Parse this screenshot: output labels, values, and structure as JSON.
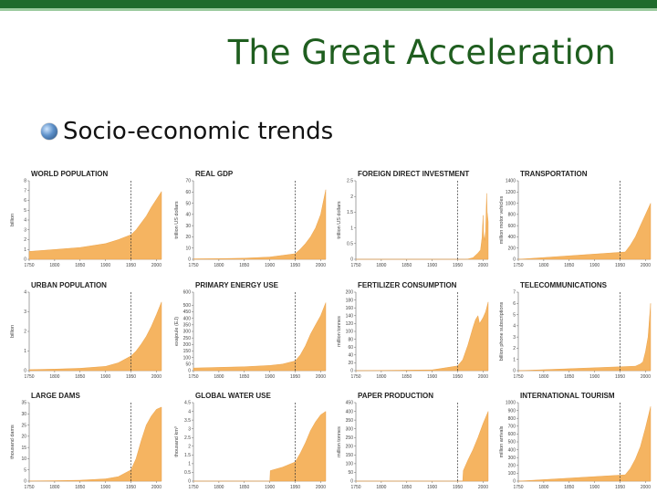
{
  "slide": {
    "title": "The Great Acceleration",
    "bullet": "Socio-economic trends"
  },
  "colors": {
    "area": "#f5b461",
    "bar_dark": "#1f6b2c",
    "bar_light": "#9ccb9f",
    "title": "#1f5e1f"
  },
  "chart_data": [
    {
      "type": "area",
      "title": "WORLD POPULATION",
      "ylabel": "billion",
      "ylim": [
        0,
        8
      ],
      "yticks": [
        "0",
        "1",
        "2",
        "3",
        "4",
        "5",
        "6",
        "7",
        "8"
      ],
      "xticks": [
        "1750",
        "1800",
        "1850",
        "1900",
        "1950",
        "2000"
      ],
      "marker": 1950,
      "x": [
        1750,
        1800,
        1850,
        1900,
        1925,
        1950,
        1960,
        1970,
        1980,
        1990,
        2000,
        2010
      ],
      "values": [
        0.8,
        1.0,
        1.2,
        1.6,
        2.0,
        2.5,
        3.0,
        3.7,
        4.4,
        5.3,
        6.1,
        6.9
      ]
    },
    {
      "type": "area",
      "title": "REAL GDP",
      "ylabel": "trillion US dollars",
      "ylim": [
        0,
        70
      ],
      "yticks": [
        "0",
        "10",
        "20",
        "30",
        "40",
        "50",
        "60",
        "70"
      ],
      "xticks": [
        "1750",
        "1800",
        "1850",
        "1900",
        "1950",
        "2000"
      ],
      "marker": 1950,
      "x": [
        1750,
        1800,
        1850,
        1900,
        1925,
        1950,
        1960,
        1970,
        1980,
        1990,
        2000,
        2010
      ],
      "values": [
        0.4,
        0.6,
        1,
        2,
        3.5,
        5,
        9,
        14,
        20,
        28,
        40,
        62
      ]
    },
    {
      "type": "area",
      "title": "FOREIGN DIRECT INVESTMENT",
      "ylabel": "trillion US dollars",
      "ylim": [
        0,
        2.5
      ],
      "yticks": [
        "0",
        "0.5",
        "1",
        "1.5",
        "2",
        "2.5"
      ],
      "xticks": [
        "1750",
        "1800",
        "1850",
        "1900",
        "1950",
        "2000"
      ],
      "marker": 1950,
      "x": [
        1750,
        1965,
        1970,
        1980,
        1990,
        1995,
        1998,
        2000,
        2001,
        2003,
        2005,
        2007,
        2008,
        2010
      ],
      "values": [
        0,
        0,
        0.01,
        0.05,
        0.2,
        0.3,
        0.7,
        1.4,
        0.8,
        0.6,
        0.9,
        2.1,
        1.5,
        1.2
      ]
    },
    {
      "type": "area",
      "title": "TRANSPORTATION",
      "ylabel": "million motor vehicles",
      "ylim": [
        0,
        1400
      ],
      "yticks": [
        "0",
        "200",
        "400",
        "600",
        "800",
        "1000",
        "1200",
        "1400"
      ],
      "xticks": [
        "1750",
        "1800",
        "1850",
        "1900",
        "1950",
        "2000"
      ],
      "marker": 1950,
      "x": [
        1750,
        1960,
        1970,
        1980,
        1990,
        2000,
        2010
      ],
      "values": [
        0,
        130,
        250,
        400,
        600,
        800,
        1000
      ]
    },
    {
      "type": "area",
      "title": "URBAN POPULATION",
      "ylabel": "billion",
      "ylim": [
        0,
        4
      ],
      "yticks": [
        "0",
        "1",
        "2",
        "3",
        "4"
      ],
      "xticks": [
        "1750",
        "1800",
        "1850",
        "1900",
        "1950",
        "2000"
      ],
      "marker": 1950,
      "x": [
        1750,
        1800,
        1850,
        1900,
        1925,
        1950,
        1960,
        1970,
        1980,
        1990,
        2000,
        2010
      ],
      "values": [
        0.05,
        0.08,
        0.12,
        0.22,
        0.4,
        0.75,
        1.0,
        1.35,
        1.75,
        2.25,
        2.85,
        3.5
      ]
    },
    {
      "type": "area",
      "title": "PRIMARY ENERGY USE",
      "ylabel": "exajoule (EJ)",
      "ylim": [
        0,
        600
      ],
      "yticks": [
        "0",
        "50",
        "100",
        "150",
        "200",
        "250",
        "300",
        "350",
        "400",
        "450",
        "500",
        "600"
      ],
      "xticks": [
        "1750",
        "1800",
        "1850",
        "1900",
        "1950",
        "2000"
      ],
      "marker": 1950,
      "x": [
        1750,
        1800,
        1850,
        1900,
        1925,
        1950,
        1960,
        1970,
        1980,
        1990,
        2000,
        2010
      ],
      "values": [
        20,
        25,
        30,
        40,
        50,
        75,
        120,
        190,
        280,
        350,
        420,
        520
      ]
    },
    {
      "type": "area",
      "title": "FERTILIZER CONSUMPTION",
      "ylabel": "million tonnes",
      "ylim": [
        0,
        200
      ],
      "yticks": [
        "0",
        "20",
        "40",
        "60",
        "80",
        "100",
        "120",
        "140",
        "160",
        "180",
        "200"
      ],
      "xticks": [
        "1750",
        "1800",
        "1850",
        "1900",
        "1950",
        "2000"
      ],
      "marker": 1950,
      "x": [
        1750,
        1900,
        1950,
        1960,
        1970,
        1980,
        1985,
        1990,
        1993,
        2000,
        2005,
        2010
      ],
      "values": [
        0,
        2,
        12,
        28,
        65,
        110,
        130,
        140,
        120,
        135,
        150,
        175
      ]
    },
    {
      "type": "area",
      "title": "TELECOMMUNICATIONS",
      "ylabel": "billion phone subscriptions",
      "ylim": [
        0,
        7
      ],
      "yticks": [
        "0",
        "1",
        "2",
        "3",
        "4",
        "5",
        "6",
        "7"
      ],
      "xticks": [
        "1750",
        "1800",
        "1850",
        "1900",
        "1950",
        "2000"
      ],
      "marker": 1950,
      "x": [
        1750,
        1980,
        1990,
        1995,
        2000,
        2005,
        2010
      ],
      "values": [
        0,
        0.4,
        0.6,
        0.8,
        1.7,
        3.0,
        6.0
      ]
    },
    {
      "type": "area",
      "title": "LARGE DAMS",
      "ylabel": "thousand dams",
      "ylim": [
        0,
        35
      ],
      "yticks": [
        "0",
        "5",
        "10",
        "15",
        "20",
        "25",
        "30",
        "35"
      ],
      "xticks": [
        "1750",
        "1800",
        "1850",
        "1900",
        "1950",
        "2000"
      ],
      "marker": 1950,
      "x": [
        1750,
        1800,
        1850,
        1900,
        1925,
        1950,
        1960,
        1970,
        1980,
        1990,
        2000,
        2010
      ],
      "values": [
        0.1,
        0.2,
        0.4,
        1,
        2,
        5,
        10,
        18,
        25,
        29,
        32,
        33
      ]
    },
    {
      "type": "area",
      "title": "GLOBAL WATER USE",
      "ylabel": "thousand km³",
      "ylim": [
        0,
        4.5
      ],
      "yticks": [
        "0",
        "0.5",
        "1",
        "1.5",
        "2",
        "2.5",
        "3",
        "3.5",
        "4",
        "4.5"
      ],
      "xticks": [
        "1750",
        "1800",
        "1850",
        "1900",
        "1950",
        "2000"
      ],
      "marker": 1950,
      "x": [
        1750,
        1900,
        1901,
        1925,
        1950,
        1960,
        1970,
        1980,
        1990,
        2000,
        2010
      ],
      "values": [
        0,
        0,
        0.6,
        0.8,
        1.1,
        1.6,
        2.2,
        2.9,
        3.4,
        3.8,
        4.0
      ]
    },
    {
      "type": "area",
      "title": "PAPER PRODUCTION",
      "ylabel": "million tonnes",
      "ylim": [
        0,
        450
      ],
      "yticks": [
        "0",
        "50",
        "100",
        "150",
        "200",
        "250",
        "300",
        "350",
        "400",
        "450"
      ],
      "xticks": [
        "1750",
        "1800",
        "1850",
        "1900",
        "1950",
        "2000"
      ],
      "marker": 1950,
      "x": [
        1750,
        1960,
        1961,
        1970,
        1980,
        1990,
        2000,
        2010
      ],
      "values": [
        0,
        0,
        60,
        120,
        180,
        250,
        330,
        400
      ]
    },
    {
      "type": "area",
      "title": "INTERNATIONAL TOURISM",
      "ylabel": "million arrivals",
      "ylim": [
        0,
        1000
      ],
      "yticks": [
        "0",
        "100",
        "200",
        "300",
        "400",
        "500",
        "600",
        "700",
        "800",
        "900",
        "1000"
      ],
      "xticks": [
        "1750",
        "1800",
        "1850",
        "1900",
        "1950",
        "2000"
      ],
      "marker": 1950,
      "x": [
        1750,
        1960,
        1970,
        1980,
        1990,
        2000,
        2010
      ],
      "values": [
        0,
        80,
        160,
        280,
        440,
        680,
        950
      ]
    }
  ]
}
